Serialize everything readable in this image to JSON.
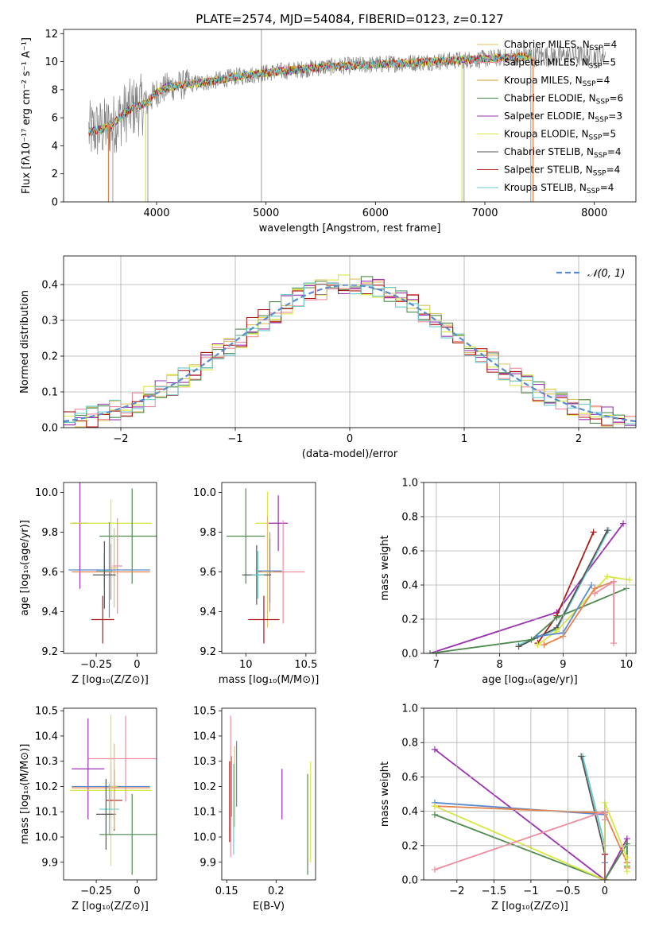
{
  "figure": {
    "title": "PLATE=2574, MJD=54084, FIBERID=0123, z=0.127"
  },
  "colors": {
    "chabrier_miles": "#e0c060",
    "salpeter_miles": "#f08ca0",
    "kroupa_miles": "#d4a020",
    "chabrier_elodie": "#4e8a4e",
    "salpeter_elodie": "#9b30b0",
    "kroupa_elodie": "#d8e840",
    "chabrier_stelib": "#555555",
    "salpeter_stelib": "#b01818",
    "kroupa_stelib": "#66cccc",
    "gaussian": "#5a8ad0",
    "orange": "#e8804a",
    "blue": "#5a8ad0"
  },
  "chart_data": [
    {
      "id": "spectrum",
      "type": "line",
      "xlabel": "wavelength [Angstrom, rest frame]",
      "ylabel": "Flux [fλ10⁻¹⁷ erg cm⁻² s⁻¹ A⁻¹]",
      "xlim": [
        3150,
        8380
      ],
      "ylim": [
        0,
        12.3
      ],
      "xticks": [
        4000,
        5000,
        6000,
        7000,
        8000
      ],
      "yticks": [
        0,
        2,
        4,
        6,
        8,
        10,
        12
      ],
      "grid": false,
      "legend_position": "top-right",
      "legend": [
        {
          "name": "Chabrier MILES",
          "n": "4",
          "color_key": "chabrier_miles"
        },
        {
          "name": "Salpeter MILES",
          "n": "5",
          "color_key": "salpeter_miles"
        },
        {
          "name": "Kroupa MILES",
          "n": "4",
          "color_key": "kroupa_miles"
        },
        {
          "name": "Chabrier ELODIE",
          "n": "6",
          "color_key": "chabrier_elodie"
        },
        {
          "name": "Salpeter ELODIE",
          "n": "3",
          "color_key": "salpeter_elodie"
        },
        {
          "name": "Kroupa ELODIE",
          "n": "5",
          "color_key": "kroupa_elodie"
        },
        {
          "name": "Chabrier STELIB",
          "n": "4",
          "color_key": "chabrier_stelib"
        },
        {
          "name": "Salpeter STELIB",
          "n": "4",
          "color_key": "salpeter_stelib"
        },
        {
          "name": "Kroupa STELIB",
          "n": "4",
          "color_key": "kroupa_stelib"
        }
      ],
      "continuum": {
        "x": [
          3380,
          3500,
          3600,
          3700,
          3800,
          3900,
          4000,
          4100,
          4300,
          4500,
          4700,
          5000,
          5500,
          6000,
          6500,
          7000,
          7400
        ],
        "y": [
          5.0,
          5.2,
          5.5,
          6.3,
          6.8,
          7.0,
          7.8,
          8.2,
          8.4,
          8.6,
          8.9,
          9.2,
          9.6,
          9.8,
          10.0,
          10.2,
          10.4
        ]
      }
    },
    {
      "id": "residuals",
      "type": "histogram",
      "xlabel": "(data-model)/error",
      "ylabel": "Normed distribution",
      "xlim": [
        -2.5,
        2.5
      ],
      "ylim": [
        0,
        0.48
      ],
      "xticks": [
        -2,
        -1,
        0,
        1,
        2
      ],
      "yticks": [
        0.0,
        0.1,
        0.2,
        0.3,
        0.4
      ],
      "grid": true,
      "legend_position": "top-right",
      "legend_label": "𝒩(0, 1)",
      "gaussian": {
        "mean": 0,
        "sigma": 1
      }
    },
    {
      "id": "age_vs_Z",
      "type": "errorbar",
      "xlabel": "Z [log₁₀(Z/Z⊙)]",
      "ylabel": "age  [log₁₀(age/yr)]",
      "xlim": [
        -0.45,
        0.12
      ],
      "ylim": [
        9.19,
        10.05
      ],
      "xticks": [
        -0.25,
        0.0
      ],
      "yticks": [
        9.2,
        9.4,
        9.6,
        9.8,
        10.0
      ],
      "points": [
        {
          "color_key": "salpeter_elodie",
          "x": -0.35,
          "xerr": 0.05,
          "y": 9.845,
          "yerr": 0.33
        },
        {
          "color_key": "kroupa_elodie",
          "x": -0.16,
          "xerr": 0.25,
          "y": 9.845,
          "yerr": 0.12
        },
        {
          "color_key": "chabrier_elodie",
          "x": -0.03,
          "xerr": 0.2,
          "y": 9.78,
          "yerr": 0.24
        },
        {
          "color_key": "salpeter_miles",
          "x": -0.12,
          "xerr": 0.03,
          "y": 9.63,
          "yerr": 0.24
        },
        {
          "color_key": "chabrier_miles",
          "x": -0.14,
          "xerr": 0.02,
          "y": 9.62,
          "yerr": 0.2
        },
        {
          "color_key": "gaussian",
          "x": -0.17,
          "xerr": 0.25,
          "y": 9.61,
          "yerr": 0.24
        },
        {
          "color_key": "orange",
          "x": -0.16,
          "xerr": 0.24,
          "y": 9.6,
          "yerr": 0.14
        },
        {
          "color_key": "kroupa_stelib",
          "x": -0.2,
          "xerr": 0.05,
          "y": 9.605,
          "yerr": 0.09
        },
        {
          "color_key": "chabrier_stelib",
          "x": -0.2,
          "xerr": 0.07,
          "y": 9.585,
          "yerr": 0.17
        },
        {
          "color_key": "salpeter_stelib",
          "x": -0.21,
          "xerr": 0.07,
          "y": 9.36,
          "yerr": 0.12
        }
      ]
    },
    {
      "id": "age_vs_mass",
      "type": "errorbar",
      "xlabel": "mass [log₁₀(M/M⊙)]",
      "ylabel": "",
      "xlim": [
        9.8,
        10.58
      ],
      "ylim": [
        9.19,
        10.05
      ],
      "xticks": [
        10.0,
        10.5
      ],
      "yticks": [
        9.2,
        9.4,
        9.6,
        9.8,
        10.0
      ],
      "points": [
        {
          "color_key": "kroupa_elodie",
          "x": 10.18,
          "xerr": 0.1,
          "y": 9.845,
          "yerr": 0.16
        },
        {
          "color_key": "salpeter_elodie",
          "x": 10.27,
          "xerr": 0.08,
          "y": 9.845,
          "yerr": 0.14
        },
        {
          "color_key": "chabrier_elodie",
          "x": 10.0,
          "xerr": 0.16,
          "y": 9.78,
          "yerr": 0.24
        },
        {
          "color_key": "salpeter_miles",
          "x": 10.31,
          "xerr": 0.18,
          "y": 9.6,
          "yerr": 0.26
        },
        {
          "color_key": "orange",
          "x": 10.2,
          "xerr": 0.1,
          "y": 9.6,
          "yerr": 0.2
        },
        {
          "color_key": "chabrier_miles",
          "x": 10.18,
          "xerr": 0.05,
          "y": 9.6,
          "yerr": 0.28
        },
        {
          "color_key": "gaussian",
          "x": 10.2,
          "xerr": 0.1,
          "y": 9.605,
          "yerr": 0.16
        },
        {
          "color_key": "chabrier_stelib",
          "x": 10.09,
          "xerr": 0.12,
          "y": 9.585,
          "yerr": 0.15
        },
        {
          "color_key": "kroupa_stelib",
          "x": 10.1,
          "xerr": 0.05,
          "y": 9.585,
          "yerr": 0.12
        },
        {
          "color_key": "salpeter_stelib",
          "x": 10.15,
          "xerr": 0.13,
          "y": 9.36,
          "yerr": 0.12
        }
      ]
    },
    {
      "id": "mass_weight_age",
      "type": "line",
      "xlabel": "age  [log₁₀(age/yr)]",
      "ylabel": "mass weight",
      "xlim": [
        6.8,
        10.15
      ],
      "ylim": [
        0,
        1.0
      ],
      "xticks": [
        7,
        8,
        9,
        10
      ],
      "yticks": [
        0.0,
        0.2,
        0.4,
        0.6,
        0.8,
        1.0
      ],
      "grid": true,
      "series": [
        {
          "color_key": "salpeter_elodie",
          "x": [
            6.9,
            8.9,
            9.95
          ],
          "y": [
            0.0,
            0.24,
            0.76
          ]
        },
        {
          "color_key": "salpeter_stelib",
          "x": [
            8.6,
            8.9,
            9.48
          ],
          "y": [
            0.06,
            0.22,
            0.71
          ]
        },
        {
          "color_key": "kroupa_stelib",
          "x": [
            8.3,
            8.9,
            9.72
          ],
          "y": [
            0.05,
            0.14,
            0.72
          ]
        },
        {
          "color_key": "chabrier_stelib",
          "x": [
            8.3,
            8.9,
            9.7
          ],
          "y": [
            0.04,
            0.15,
            0.72
          ]
        },
        {
          "color_key": "chabrier_elodie",
          "x": [
            6.9,
            8.5,
            8.9,
            10.0
          ],
          "y": [
            0.0,
            0.08,
            0.21,
            0.38
          ]
        },
        {
          "color_key": "kroupa_elodie",
          "x": [
            8.6,
            8.9,
            9.7,
            10.05
          ],
          "y": [
            0.05,
            0.13,
            0.45,
            0.43
          ]
        },
        {
          "color_key": "orange",
          "x": [
            8.7,
            9.0,
            9.5,
            9.8
          ],
          "y": [
            0.05,
            0.1,
            0.38,
            0.42
          ]
        },
        {
          "color_key": "salpeter_miles",
          "x": [
            9.5,
            9.8,
            9.8
          ],
          "y": [
            0.35,
            0.42,
            0.06
          ]
        },
        {
          "color_key": "gaussian",
          "x": [
            8.6,
            9.0,
            9.45
          ],
          "y": [
            0.1,
            0.12,
            0.4
          ]
        }
      ]
    },
    {
      "id": "mass_vs_Z",
      "type": "errorbar",
      "xlabel": "Z [log₁₀(Z/Z⊙)]",
      "ylabel": "mass [log₁₀(M/M⊙)]",
      "xlim": [
        -0.45,
        0.12
      ],
      "ylim": [
        9.83,
        10.51
      ],
      "xticks": [
        -0.25,
        0.0
      ],
      "yticks": [
        9.9,
        10.0,
        10.1,
        10.2,
        10.3,
        10.4,
        10.5
      ],
      "points": [
        {
          "color_key": "salpeter_miles",
          "x": -0.07,
          "xerr": 0.23,
          "y": 10.31,
          "yerr": 0.17
        },
        {
          "color_key": "salpeter_elodie",
          "x": -0.3,
          "xerr": 0.1,
          "y": 10.27,
          "yerr": 0.2
        },
        {
          "color_key": "gaussian",
          "x": -0.16,
          "xerr": 0.24,
          "y": 10.2,
          "yerr": 0.09
        },
        {
          "color_key": "orange",
          "x": -0.16,
          "xerr": 0.24,
          "y": 10.195,
          "yerr": 0.12
        },
        {
          "color_key": "kroupa_elodie",
          "x": -0.16,
          "xerr": 0.25,
          "y": 10.185,
          "yerr": 0.3
        },
        {
          "color_key": "salpeter_stelib",
          "x": -0.14,
          "xerr": 0.05,
          "y": 10.145,
          "yerr": 0.12
        },
        {
          "color_key": "kroupa_stelib",
          "x": -0.17,
          "xerr": 0.06,
          "y": 10.11,
          "yerr": 0.1
        },
        {
          "color_key": "chabrier_stelib",
          "x": -0.19,
          "xerr": 0.06,
          "y": 10.09,
          "yerr": 0.14
        },
        {
          "color_key": "chabrier_elodie",
          "x": -0.03,
          "xerr": 0.2,
          "y": 10.01,
          "yerr": 0.16
        },
        {
          "color_key": "chabrier_miles",
          "x": -0.14,
          "xerr": 0.02,
          "y": 10.2,
          "yerr": 0.17
        }
      ]
    },
    {
      "id": "mass_vs_ebv",
      "type": "errorbar",
      "xlabel": "E(B-V)",
      "ylabel": "",
      "xlim": [
        0.145,
        0.24
      ],
      "ylim": [
        9.83,
        10.51
      ],
      "xticks": [
        0.15,
        0.2
      ],
      "yticks": [
        9.9,
        10.0,
        10.1,
        10.2,
        10.3,
        10.4,
        10.5
      ],
      "points": [
        {
          "color_key": "salpeter_miles",
          "x": 0.154,
          "xerr": 0.0,
          "y": 10.2,
          "yerr": 0.28
        },
        {
          "color_key": "salpeter_stelib",
          "x": 0.153,
          "xerr": 0.0,
          "y": 10.14,
          "yerr": 0.16
        },
        {
          "color_key": "orange",
          "x": 0.155,
          "xerr": 0.0,
          "y": 10.2,
          "yerr": 0.12
        },
        {
          "color_key": "kroupa_stelib",
          "x": 0.157,
          "xerr": 0.0,
          "y": 10.11,
          "yerr": 0.18
        },
        {
          "color_key": "chabrier_miles",
          "x": 0.158,
          "xerr": 0.0,
          "y": 10.2,
          "yerr": 0.16
        },
        {
          "color_key": "gaussian",
          "x": 0.16,
          "xerr": 0.0,
          "y": 10.25,
          "yerr": 0.13
        },
        {
          "color_key": "salpeter_elodie",
          "x": 0.206,
          "xerr": 0.0,
          "y": 10.17,
          "yerr": 0.1
        },
        {
          "color_key": "chabrier_elodie",
          "x": 0.232,
          "xerr": 0.0,
          "y": 10.05,
          "yerr": 0.2
        },
        {
          "color_key": "kroupa_elodie",
          "x": 0.235,
          "xerr": 0.0,
          "y": 10.1,
          "yerr": 0.2
        }
      ]
    },
    {
      "id": "mass_weight_Z",
      "type": "line",
      "xlabel": "Z [log₁₀(Z/Z⊙)]",
      "ylabel": "mass weight",
      "xlim": [
        -2.45,
        0.42
      ],
      "ylim": [
        0,
        1.0
      ],
      "xticks": [
        -2.0,
        -1.5,
        -1.0,
        -0.5,
        0.0
      ],
      "yticks": [
        0.0,
        0.2,
        0.4,
        0.6,
        0.8,
        1.0
      ],
      "grid": true,
      "series": [
        {
          "color_key": "salpeter_elodie",
          "x": [
            -2.3,
            0.0,
            0.3,
            0.3
          ],
          "y": [
            0.76,
            0.0,
            0.24,
            0.1
          ]
        },
        {
          "color_key": "kroupa_stelib",
          "x": [
            -0.3,
            0.0,
            0.0
          ],
          "y": [
            0.72,
            0.2,
            0.0
          ]
        },
        {
          "color_key": "chabrier_stelib",
          "x": [
            -0.32,
            0.0,
            0.0
          ],
          "y": [
            0.72,
            0.15,
            0.0
          ]
        },
        {
          "color_key": "gaussian",
          "x": [
            -2.3,
            0.0,
            0.0
          ],
          "y": [
            0.45,
            0.38,
            0.1
          ]
        },
        {
          "color_key": "orange",
          "x": [
            -2.3,
            0.0,
            0.3,
            0.3
          ],
          "y": [
            0.43,
            0.39,
            0.1,
            0.07
          ]
        },
        {
          "color_key": "chabrier_elodie",
          "x": [
            -2.3,
            0.0,
            0.3,
            0.3
          ],
          "y": [
            0.38,
            0.0,
            0.21,
            0.08
          ]
        },
        {
          "color_key": "kroupa_elodie",
          "x": [
            -2.3,
            0.0,
            0.0,
            0.3,
            0.3
          ],
          "y": [
            0.43,
            0.0,
            0.45,
            0.13,
            0.05
          ]
        },
        {
          "color_key": "salpeter_miles",
          "x": [
            -2.3,
            0.0,
            0.0
          ],
          "y": [
            0.06,
            0.4,
            0.35
          ]
        },
        {
          "color_key": "salpeter_stelib",
          "x": [
            0.0,
            0.0
          ],
          "y": [
            0.0,
            0.15
          ]
        }
      ]
    }
  ]
}
